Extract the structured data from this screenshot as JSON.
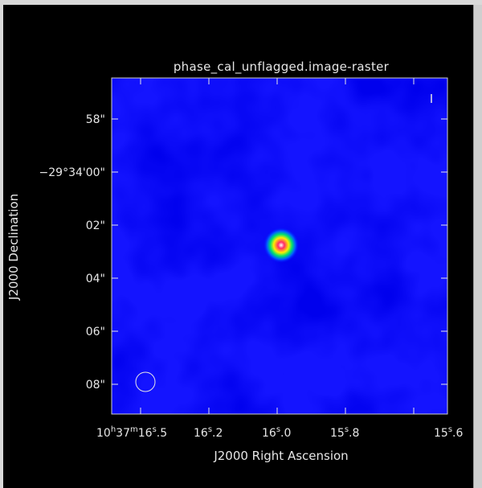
{
  "window": {
    "title": "phase_cal_unflagged.image-raster"
  },
  "chart_data": {
    "type": "heatmap",
    "title": "phase_cal_unflagged.image-raster",
    "xlabel": "J2000 Right Ascension",
    "ylabel": "J2000 Declination",
    "x_ticks": [
      {
        "main": "10",
        "sup1": "h",
        "mid": "37",
        "sup2": "m",
        "sec": "16",
        "sup3": "s",
        "frac": ".5"
      },
      {
        "main": "",
        "sup1": "",
        "mid": "",
        "sup2": "",
        "sec": "16",
        "sup3": "s",
        "frac": ".2"
      },
      {
        "main": "",
        "sup1": "",
        "mid": "",
        "sup2": "",
        "sec": "16",
        "sup3": "s",
        "frac": ".0"
      },
      {
        "main": "",
        "sup1": "",
        "mid": "",
        "sup2": "",
        "sec": "15",
        "sup3": "s",
        "frac": ".8"
      },
      {
        "main": "",
        "sup1": "",
        "mid": "",
        "sup2": "",
        "sec": "15",
        "sup3": "s",
        "frac": ".6"
      }
    ],
    "y_ticks": [
      {
        "label": "58\""
      },
      {
        "label": "−29°34'00\""
      },
      {
        "label": "02\""
      },
      {
        "label": "04\""
      },
      {
        "label": "06\""
      },
      {
        "label": "08\""
      }
    ],
    "source": {
      "ra_label": "16.06s",
      "dec_offset_arcsec": -2.6
    },
    "colormap": "rainbow",
    "beam_marker": "present",
    "grid": false
  }
}
